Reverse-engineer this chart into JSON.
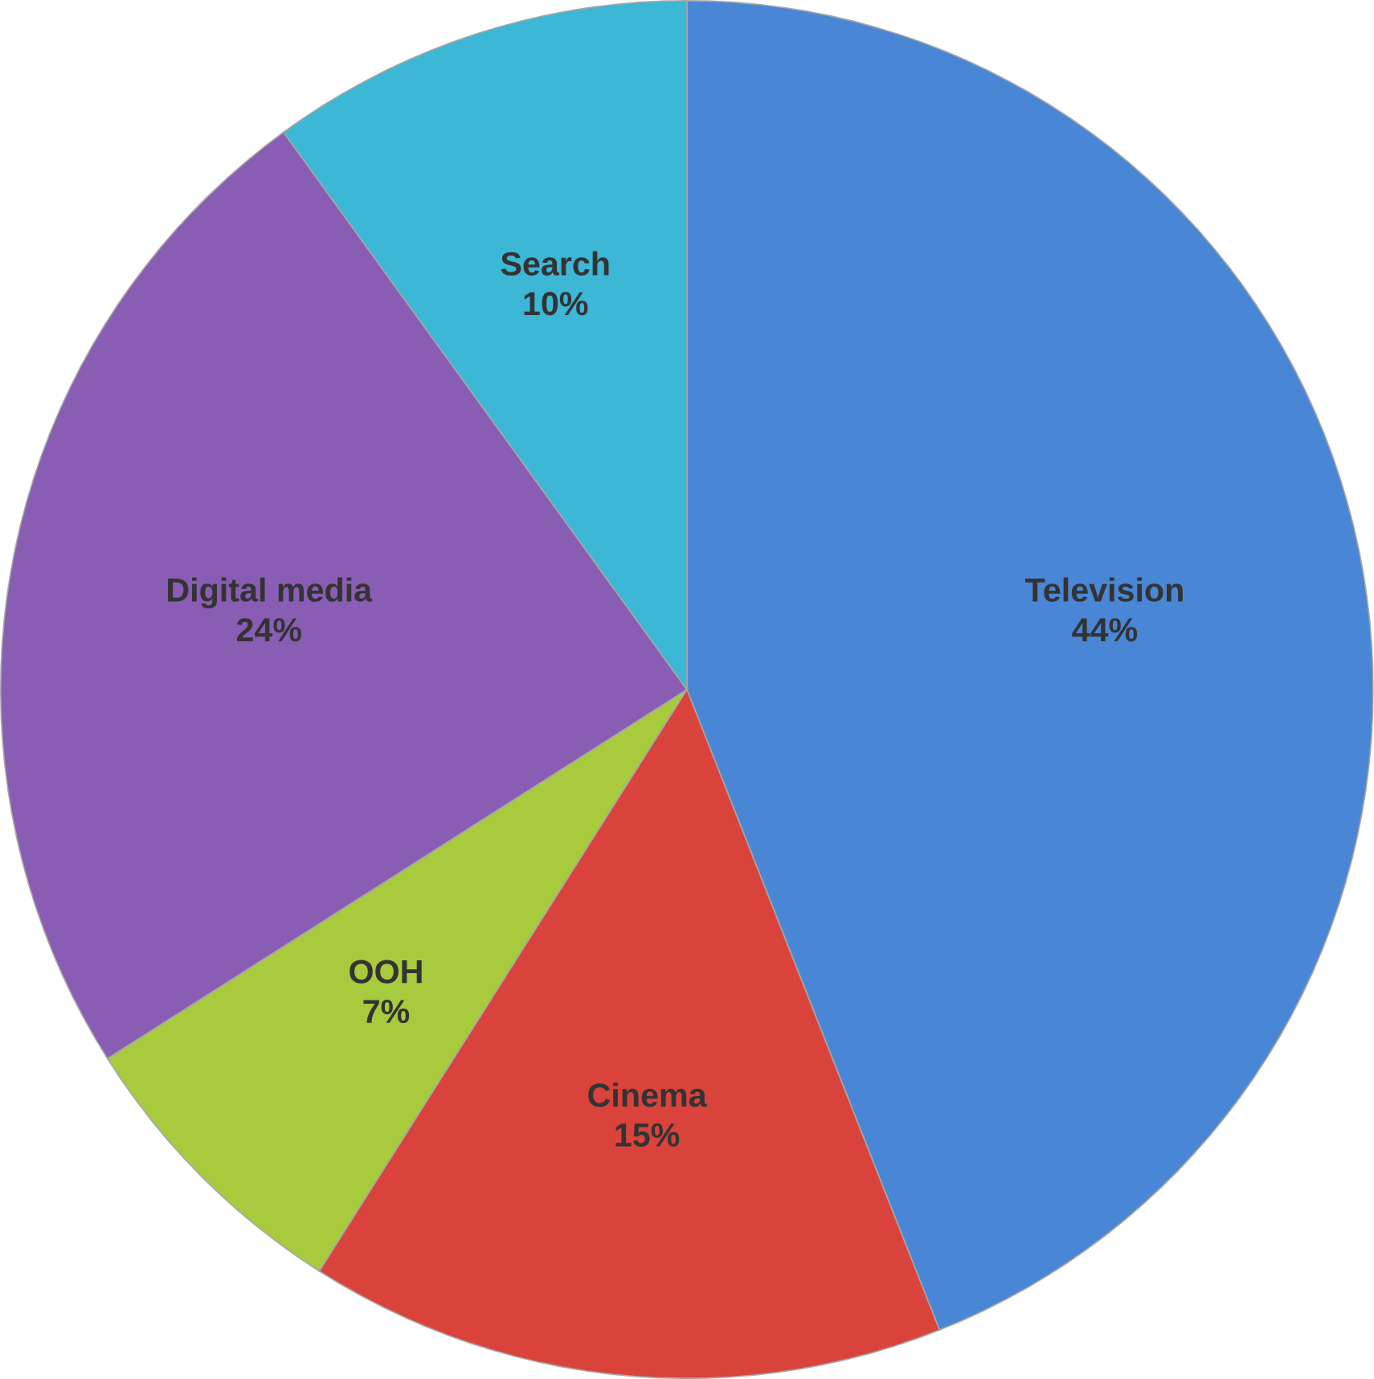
{
  "chart_data": {
    "type": "pie",
    "categories": [
      "Television",
      "Cinema",
      "OOH",
      "Digital media",
      "Search"
    ],
    "values": [
      44,
      15,
      7,
      24,
      10
    ],
    "value_labels": [
      "44%",
      "15%",
      "7%",
      "24%",
      "10%"
    ],
    "colors": [
      "#4a86d6",
      "#d9433b",
      "#a7cb3d",
      "#8a5db4",
      "#3cb7d6"
    ]
  }
}
